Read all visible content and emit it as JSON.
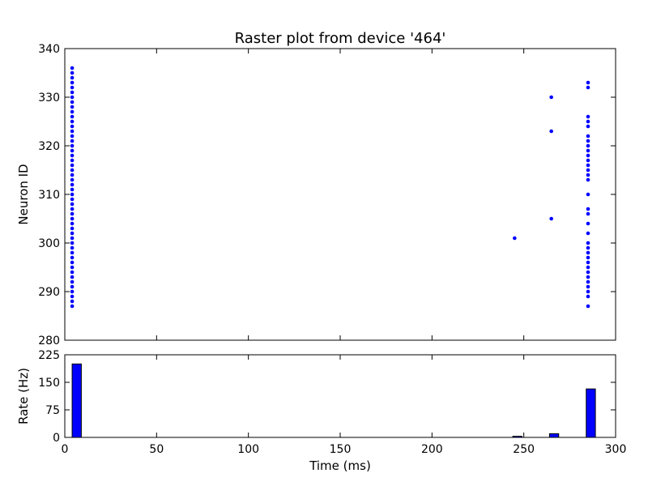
{
  "chart_data": [
    {
      "type": "scatter",
      "title": "Raster plot from device '464'",
      "xlabel": "",
      "ylabel": "Neuron ID",
      "xlim": [
        0,
        300
      ],
      "ylim": [
        280,
        340
      ],
      "x_ticks_labels_shown": false,
      "y_ticks": [
        280,
        290,
        300,
        310,
        320,
        330,
        340
      ],
      "grid": false,
      "marker_color": "#0000ff",
      "spike_groups": [
        {
          "time": 4,
          "neurons": [
            287,
            288,
            289,
            290,
            291,
            292,
            293,
            294,
            295,
            296,
            297,
            298,
            299,
            300,
            301,
            302,
            303,
            304,
            305,
            306,
            307,
            308,
            309,
            310,
            311,
            312,
            313,
            314,
            315,
            316,
            317,
            318,
            319,
            320,
            321,
            322,
            323,
            324,
            325,
            326,
            327,
            328,
            329,
            330,
            331,
            332,
            333,
            334,
            335,
            336
          ]
        },
        {
          "time": 245,
          "neurons": [
            301
          ]
        },
        {
          "time": 265,
          "neurons": [
            305,
            323,
            330
          ]
        },
        {
          "time": 285,
          "neurons": [
            287,
            289,
            290,
            291,
            292,
            293,
            294,
            295,
            296,
            297,
            298,
            299,
            300,
            302,
            304,
            306,
            307,
            310,
            313,
            314,
            315,
            316,
            317,
            318,
            319,
            320,
            321,
            322,
            324,
            325,
            326,
            332,
            333
          ]
        }
      ]
    },
    {
      "type": "bar",
      "title": "",
      "xlabel": "Time (ms)",
      "ylabel": "Rate (Hz)",
      "xlim": [
        0,
        300
      ],
      "ylim": [
        0,
        225
      ],
      "x_ticks": [
        0,
        50,
        100,
        150,
        200,
        250,
        300
      ],
      "y_ticks": [
        0,
        75,
        150,
        225
      ],
      "grid": false,
      "bar_color": "#0000ff",
      "bar_width": 5,
      "bars": [
        {
          "x_start": 4,
          "value": 200
        },
        {
          "x_start": 244,
          "value": 3
        },
        {
          "x_start": 264,
          "value": 10
        },
        {
          "x_start": 284,
          "value": 132
        }
      ]
    }
  ]
}
